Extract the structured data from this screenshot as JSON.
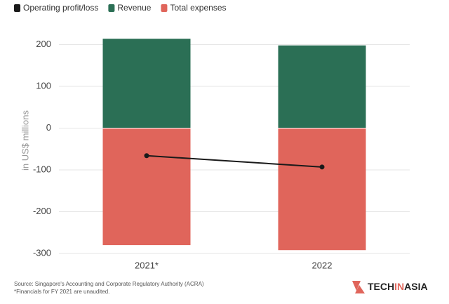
{
  "chart_data": {
    "type": "bar",
    "stacked": true,
    "categories": [
      "2021*",
      "2022"
    ],
    "series": [
      {
        "name": "Operating profit/loss",
        "color": "#1a1a1a",
        "type": "line",
        "values": [
          -66,
          -93
        ]
      },
      {
        "name": "Revenue",
        "color": "#2b6f55",
        "type": "bar",
        "values": [
          214,
          198
        ]
      },
      {
        "name": "Total expenses",
        "color": "#e0655b",
        "type": "bar",
        "values": [
          -280,
          -292
        ]
      }
    ],
    "ylabel": "in US$ millions",
    "ylim": [
      -300,
      230
    ],
    "yticks": [
      -300,
      -200,
      -100,
      0,
      100,
      200
    ],
    "grid": true,
    "legend": "top-left",
    "source": [
      "Source: Singapore's Accounting and Corporate Regulatory Authority (ACRA)",
      "*Financials for FY 2021 are unaudited."
    ],
    "logo": [
      "TECH",
      "IN",
      "ASIA"
    ]
  }
}
